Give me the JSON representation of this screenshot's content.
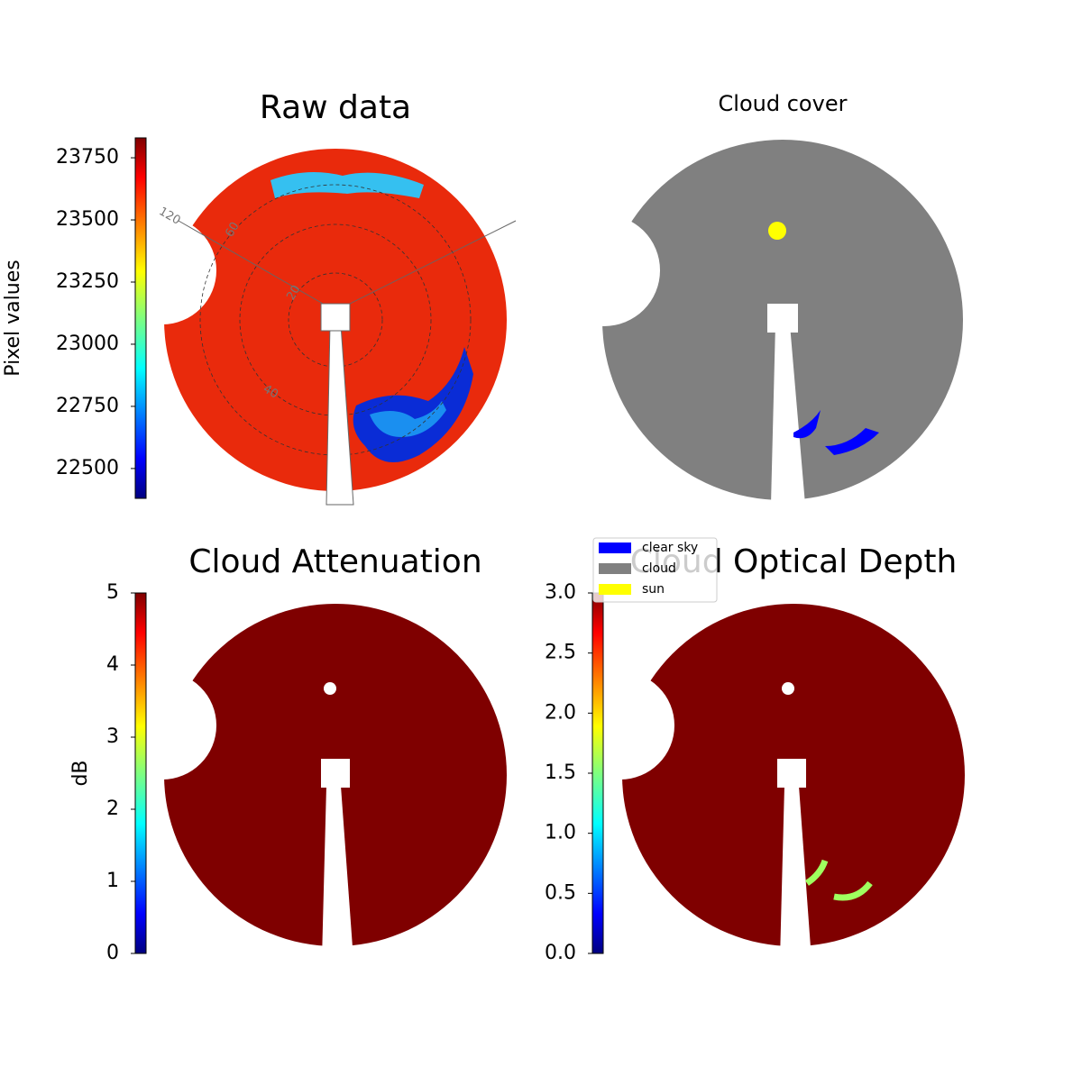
{
  "chart_data": [
    {
      "type": "heatmap",
      "title": "Raw data",
      "colorbar_label": "Pixel values",
      "colormap": "jet",
      "ylim": [
        22380,
        23830
      ],
      "yticks": [
        22500,
        22750,
        23000,
        23250,
        23500,
        23750
      ],
      "polar_labels": [
        "120",
        "60",
        "20",
        "40"
      ]
    },
    {
      "type": "heatmap",
      "title": "Cloud cover",
      "legend": {
        "entries": [
          {
            "name": "clear sky",
            "color": "#0000ff"
          },
          {
            "name": "cloud",
            "color": "#808080"
          },
          {
            "name": "sun",
            "color": "#ffff00"
          }
        ]
      }
    },
    {
      "type": "heatmap",
      "title": "Cloud Attenuation",
      "colorbar_label": "dB",
      "colormap": "jet",
      "ylim": [
        0,
        5
      ],
      "yticks": [
        0,
        1,
        2,
        3,
        4,
        5
      ]
    },
    {
      "type": "heatmap",
      "title": "Cloud Optical Depth",
      "colormap": "jet",
      "ylim": [
        0,
        3
      ],
      "yticks": [
        {
          "value": 0,
          "label": "0.0"
        },
        0.5,
        {
          "value": 1,
          "label": "1.0"
        },
        1.5,
        {
          "value": 2,
          "label": "2.0"
        },
        2.5,
        {
          "value": 3,
          "label": "3.0"
        }
      ]
    }
  ]
}
